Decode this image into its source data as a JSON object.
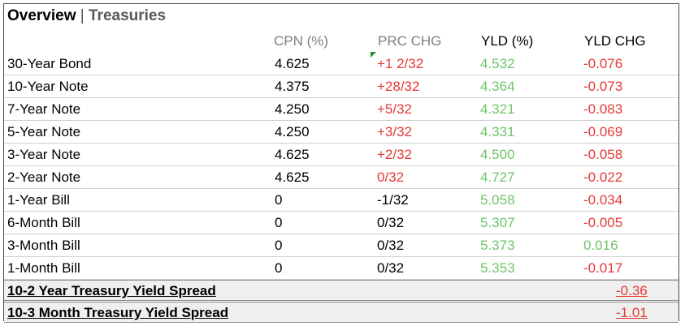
{
  "title": {
    "main": "Overview",
    "separator": "|",
    "sub": "Treasuries"
  },
  "headers": {
    "cpn": "CPN (%)",
    "prc": "PRC CHG",
    "yld": "YLD (%)",
    "yld_chg": "YLD CHG"
  },
  "rows": [
    {
      "name": "30-Year Bond",
      "cpn": "4.625",
      "prc": "+1 2/32",
      "prc_color": "red",
      "yld": "4.532",
      "chg": "-0.076",
      "chg_color": "red"
    },
    {
      "name": "10-Year Note",
      "cpn": "4.375",
      "prc": "+28/32",
      "prc_color": "red",
      "yld": "4.364",
      "chg": "-0.073",
      "chg_color": "red"
    },
    {
      "name": "7-Year Note",
      "cpn": "4.250",
      "prc": "+5/32",
      "prc_color": "red",
      "yld": "4.321",
      "chg": "-0.083",
      "chg_color": "red"
    },
    {
      "name": "5-Year Note",
      "cpn": "4.250",
      "prc": "+3/32",
      "prc_color": "red",
      "yld": "4.331",
      "chg": "-0.069",
      "chg_color": "red"
    },
    {
      "name": "3-Year Note",
      "cpn": "4.625",
      "prc": "+2/32",
      "prc_color": "red",
      "yld": "4.500",
      "chg": "-0.058",
      "chg_color": "red"
    },
    {
      "name": "2-Year Note",
      "cpn": "4.625",
      "prc": "0/32",
      "prc_color": "red",
      "yld": "4.727",
      "chg": "-0.022",
      "chg_color": "red"
    },
    {
      "name": "1-Year Bill",
      "cpn": "0",
      "prc": "-1/32",
      "prc_color": "black",
      "yld": "5.058",
      "chg": "-0.034",
      "chg_color": "red"
    },
    {
      "name": "6-Month Bill",
      "cpn": "0",
      "prc": "0/32",
      "prc_color": "black",
      "yld": "5.307",
      "chg": "-0.005",
      "chg_color": "red"
    },
    {
      "name": "3-Month Bill",
      "cpn": "0",
      "prc": "0/32",
      "prc_color": "black",
      "yld": "5.373",
      "chg": "0.016",
      "chg_color": "green"
    },
    {
      "name": "1-Month Bill",
      "cpn": "0",
      "prc": "0/32",
      "prc_color": "black",
      "yld": "5.353",
      "chg": "-0.017",
      "chg_color": "red"
    }
  ],
  "spreads": [
    {
      "label": "10-2 Year Treasury Yield Spread",
      "value": "-0.36"
    },
    {
      "label": "10-3 Month Treasury Yield Spread",
      "value": "-1.01"
    }
  ],
  "colors": {
    "red": "#e53935",
    "green": "#6fc36a",
    "gray_header": "#7f7f7f"
  }
}
